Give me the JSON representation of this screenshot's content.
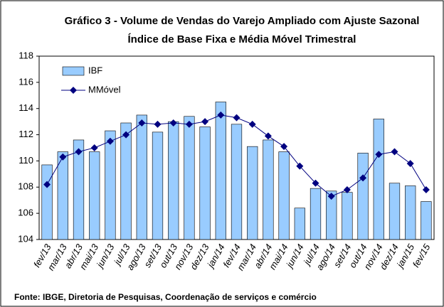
{
  "chart_data": {
    "type": "bar",
    "title": "Gráfico 3 - Volume de Vendas do Varejo Ampliado com Ajuste Sazonal",
    "subtitle": "Índice de Base Fixa e Média Móvel Trimestral",
    "source": "Fonte: IBGE, Diretoria de Pesquisas, Coordenação de serviços e comércio",
    "categories": [
      "fev/13",
      "mar/13",
      "abr/13",
      "mai/13",
      "jun/13",
      "jul/13",
      "ago/13",
      "set/13",
      "out/13",
      "nov/13",
      "dez/13",
      "jan/14",
      "fev/14",
      "mar/14",
      "abr/14",
      "mai/14",
      "jun/14",
      "jul/14",
      "ago/14",
      "set/14",
      "out/14",
      "nov/14",
      "dez/14",
      "jan/15",
      "fev/15"
    ],
    "series": [
      {
        "name": "IBF",
        "type": "bar",
        "color": "#99ccff",
        "values": [
          109.7,
          110.7,
          111.6,
          110.7,
          112.3,
          112.9,
          113.5,
          112.2,
          113.0,
          113.4,
          112.6,
          114.5,
          112.8,
          111.1,
          111.6,
          110.7,
          106.4,
          107.9,
          107.7,
          107.6,
          110.6,
          113.2,
          108.3,
          108.1,
          106.9
        ]
      },
      {
        "name": "MMóvel",
        "type": "line",
        "color": "#000080",
        "values": [
          108.2,
          110.3,
          110.7,
          111.0,
          111.5,
          112.0,
          112.9,
          112.8,
          112.9,
          112.8,
          113.0,
          113.5,
          113.3,
          112.8,
          111.9,
          111.1,
          109.6,
          108.3,
          107.3,
          107.8,
          108.7,
          110.5,
          110.7,
          109.8,
          107.8
        ]
      }
    ],
    "ylim": [
      104,
      118
    ],
    "yticks": [
      104,
      106,
      108,
      110,
      112,
      114,
      116,
      118
    ],
    "grid": false
  }
}
